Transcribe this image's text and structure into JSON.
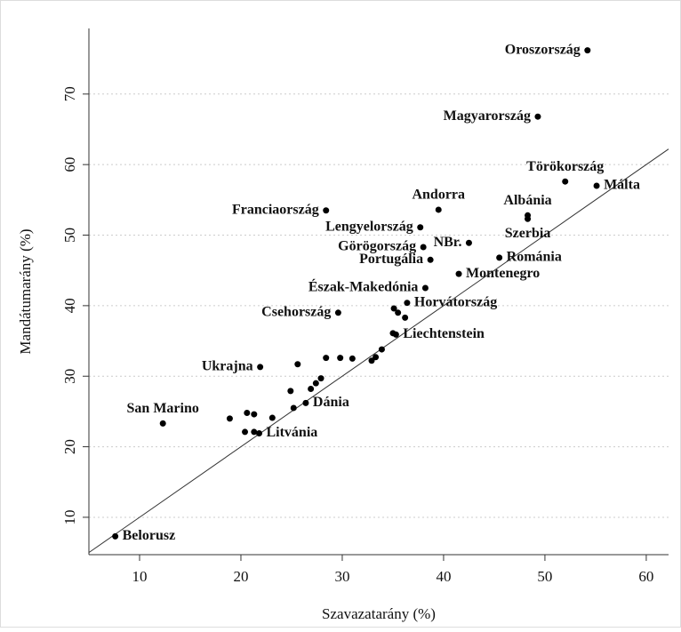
{
  "chart_data": {
    "type": "scatter",
    "x_label": "Szavazatarány (%)",
    "y_label": "Mandátumarány (%)",
    "x": [
      54.2,
      49.3,
      52.0,
      55.1,
      48.3,
      48.3,
      39.5,
      28.4,
      37.7,
      42.5,
      38.0,
      45.5,
      38.7,
      41.5,
      38.2,
      36.4,
      29.6,
      35.3,
      21.9,
      26.4,
      12.3,
      21.8,
      7.6,
      35.1,
      35.5,
      36.2,
      35.0,
      33.9,
      33.3,
      32.9,
      31.0,
      29.8,
      28.4,
      25.6,
      27.4,
      27.9,
      24.9,
      26.9,
      25.2,
      23.1,
      21.3,
      20.6,
      18.9,
      20.4,
      21.3
    ],
    "values": [
      76.2,
      66.8,
      57.6,
      57.0,
      52.8,
      52.3,
      53.6,
      53.5,
      51.1,
      48.9,
      48.3,
      46.8,
      46.5,
      44.5,
      42.5,
      40.4,
      39.0,
      35.9,
      31.3,
      26.2,
      23.3,
      21.9,
      7.3,
      39.6,
      39.0,
      38.3,
      36.1,
      33.8,
      32.7,
      32.2,
      32.5,
      32.6,
      32.6,
      31.7,
      29.0,
      29.7,
      27.9,
      28.2,
      25.5,
      24.1,
      24.6,
      24.8,
      24.0,
      22.1,
      22.1
    ],
    "labels": [
      "Oroszország",
      "Magyarország",
      "Törökország",
      "Málta",
      "Albánia",
      "Szerbia",
      "Andorra",
      "Franciaország",
      "Lengyelország",
      "NBr.",
      "Görögország",
      "Románia",
      "Portugália",
      "Montenegro",
      "Észak-Makedónia",
      "Horvátország",
      "Csehország",
      "Liechtenstein",
      "Ukrajna",
      "Dánia",
      "San Marino",
      "Litvánia",
      "Belorusz",
      null,
      null,
      null,
      null,
      null,
      null,
      null,
      null,
      null,
      null,
      null,
      null,
      null,
      null,
      null,
      null,
      null,
      null,
      null,
      null,
      null,
      null
    ],
    "label_sides": [
      "left",
      "left",
      "above",
      "right",
      "above",
      "below",
      "above",
      "left",
      "left",
      "left",
      "left",
      "right",
      "left",
      "right",
      "left",
      "right",
      "left",
      "right",
      "left",
      "right",
      "above",
      "right",
      "right",
      null,
      null,
      null,
      null,
      null,
      null,
      null,
      null,
      null,
      null,
      null,
      null,
      null,
      null,
      null,
      null,
      null,
      null,
      null,
      null,
      null,
      null
    ],
    "color": "#000000",
    "diagonal": true,
    "grid": true,
    "xlim": [
      5,
      62.2
    ],
    "xticks": [
      10,
      20,
      30,
      40,
      50,
      60
    ],
    "ylim": [
      4.7,
      79.3
    ],
    "yticks": [
      10,
      20,
      30,
      40,
      50,
      60,
      70
    ]
  }
}
